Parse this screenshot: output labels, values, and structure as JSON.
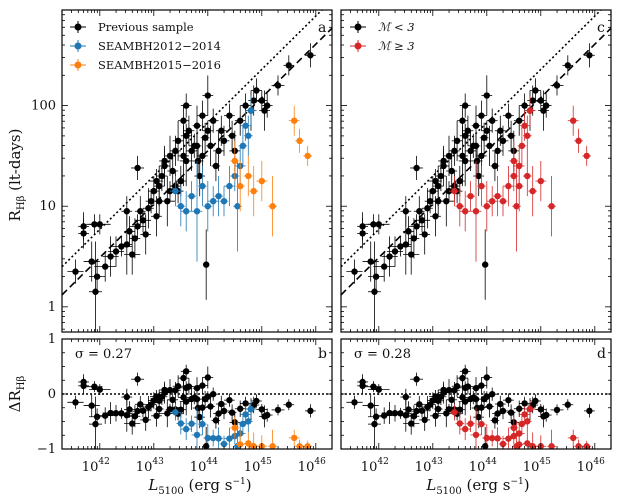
{
  "chart_data": {
    "type": "scatter",
    "xlabel": "L5100 (erg s⁻¹)",
    "ylabel_top": "RHβ (lt-days)",
    "ylabel_bottom": "ΔRHβ",
    "xscale": "log",
    "xlim_log": [
      41.3,
      46.3
    ],
    "x_ticks": [
      {
        "v": 42,
        "label": "10"
      },
      {
        "v": 43,
        "label": "10"
      },
      {
        "v": 44,
        "label": "10"
      },
      {
        "v": 45,
        "label": "10"
      },
      {
        "v": 46,
        "label": "10"
      }
    ],
    "x_tick_exponents": [
      "42",
      "43",
      "44",
      "45",
      "46"
    ],
    "top_ylim_log": [
      -0.25,
      2.95
    ],
    "top_y_ticks": [
      {
        "v": 0,
        "label": "1"
      },
      {
        "v": 1,
        "label": "10"
      },
      {
        "v": 2,
        "label": "100"
      }
    ],
    "bottom_ylim": [
      -1,
      1
    ],
    "bottom_y_ticks": [
      {
        "v": -1,
        "label": "−1"
      },
      {
        "v": 0,
        "label": "0"
      },
      {
        "v": 1,
        "label": "1"
      }
    ],
    "fit_dashed": {
      "slope": 0.53,
      "intercept_logR_at_44": 1.55
    },
    "fit_dotted": {
      "slope": 0.53,
      "intercept_logR_at_44": 1.83
    },
    "colors": {
      "previous": "#000000",
      "seamb1214": "#1f77b4",
      "seamb1516": "#ff7f0e",
      "high_mdot": "#d62728"
    },
    "panels": [
      {
        "id": "a",
        "letter": "a",
        "legend": [
          "Previous sample",
          "SEAMBH2012−2014",
          "SEAMBH2015−2016"
        ]
      },
      {
        "id": "b",
        "letter": "b",
        "sigma": "σ = 0.27"
      },
      {
        "id": "c",
        "letter": "c",
        "legend": [
          "ℳ̇ < 3",
          "ℳ̇ ≥ 3"
        ]
      },
      {
        "id": "d",
        "letter": "d",
        "sigma": "σ = 0.28"
      }
    ],
    "series": [
      {
        "name": "Previous sample",
        "group": "previous",
        "points": [
          [
            41.55,
            0.35,
            0.15,
            0.12
          ],
          [
            41.7,
            0.8,
            0.1,
            0.14
          ],
          [
            41.7,
            0.73,
            0.1,
            0.15
          ],
          [
            41.9,
            0.82,
            0.15,
            0.1
          ],
          [
            42.0,
            0.82,
            0.2,
            0.1
          ],
          [
            41.85,
            0.45,
            0.15,
            0.2
          ],
          [
            41.92,
            0.15,
            0.12,
            0.5
          ],
          [
            41.95,
            0.3,
            0.15,
            0.15
          ],
          [
            42.1,
            0.4,
            0.2,
            0.15
          ],
          [
            42.2,
            0.5,
            0.15,
            0.2
          ],
          [
            42.3,
            0.55,
            0.15,
            0.15
          ],
          [
            42.4,
            0.6,
            0.2,
            0.1
          ],
          [
            42.5,
            0.62,
            0.1,
            0.3
          ],
          [
            42.55,
            0.75,
            0.1,
            0.15
          ],
          [
            42.6,
            0.52,
            0.15,
            0.2
          ],
          [
            42.65,
            0.68,
            0.1,
            0.2
          ],
          [
            42.7,
            0.8,
            0.15,
            0.12
          ],
          [
            42.75,
            0.95,
            0.1,
            0.15
          ],
          [
            42.8,
            0.86,
            0.15,
            0.12
          ],
          [
            42.85,
            0.72,
            0.1,
            0.2
          ],
          [
            42.9,
            0.98,
            0.1,
            0.2
          ],
          [
            42.95,
            1.05,
            0.1,
            0.12
          ],
          [
            43.0,
            1.15,
            0.1,
            0.15
          ],
          [
            43.05,
            1.25,
            0.12,
            0.12
          ],
          [
            43.05,
            0.9,
            0.1,
            0.2
          ],
          [
            43.1,
            1.2,
            0.1,
            0.2
          ],
          [
            43.15,
            1.3,
            0.1,
            0.15
          ],
          [
            43.2,
            1.45,
            0.1,
            0.12
          ],
          [
            43.25,
            1.05,
            0.15,
            0.25
          ],
          [
            43.3,
            1.15,
            0.08,
            0.1
          ],
          [
            43.35,
            1.35,
            0.1,
            0.2
          ],
          [
            43.4,
            1.55,
            0.1,
            0.15
          ],
          [
            43.45,
            1.65,
            0.1,
            0.2
          ],
          [
            43.5,
            1.25,
            0.1,
            0.15
          ],
          [
            43.55,
            1.5,
            0.1,
            0.3
          ],
          [
            43.6,
            1.45,
            0.12,
            0.25
          ],
          [
            43.6,
            1.7,
            0.1,
            0.12
          ],
          [
            43.65,
            1.75,
            0.1,
            0.15
          ],
          [
            43.7,
            1.55,
            0.1,
            0.2
          ],
          [
            43.75,
            1.6,
            0.1,
            0.12
          ],
          [
            43.8,
            1.8,
            0.08,
            0.2
          ],
          [
            43.82,
            1.45,
            0.1,
            0.15
          ],
          [
            43.85,
            1.3,
            0.1,
            0.2
          ],
          [
            43.9,
            1.5,
            0.1,
            0.2
          ],
          [
            43.95,
            1.68,
            0.08,
            0.15
          ],
          [
            43.97,
            0.42,
            0.05,
            0.35
          ],
          [
            44.0,
            1.75,
            0.1,
            0.1
          ],
          [
            44.05,
            1.6,
            0.08,
            0.2
          ],
          [
            44.1,
            1.85,
            0.1,
            0.12
          ],
          [
            44.15,
            1.4,
            0.08,
            0.15
          ],
          [
            44.2,
            1.55,
            0.1,
            0.2
          ],
          [
            44.3,
            1.65,
            0.1,
            0.15
          ],
          [
            44.4,
            1.9,
            0.1,
            0.12
          ],
          [
            44.45,
            1.7,
            0.08,
            0.15
          ],
          [
            44.5,
            1.55,
            0.1,
            0.2
          ],
          [
            44.6,
            1.85,
            0.1,
            0.15
          ],
          [
            44.7,
            2.0,
            0.1,
            0.12
          ],
          [
            44.8,
            1.95,
            0.1,
            0.2
          ],
          [
            44.85,
            2.05,
            0.1,
            0.15
          ],
          [
            44.9,
            2.15,
            0.1,
            0.12
          ],
          [
            45.0,
            2.05,
            0.1,
            0.1
          ],
          [
            45.05,
            1.95,
            0.1,
            0.2
          ],
          [
            45.1,
            2.0,
            0.1,
            0.12
          ],
          [
            45.3,
            2.2,
            0.12,
            0.1
          ],
          [
            45.5,
            2.4,
            0.1,
            0.1
          ],
          [
            45.9,
            2.5,
            0.1,
            0.12
          ],
          [
            43.2,
            1.4,
            0.1,
            0.2
          ],
          [
            43.4,
            1.2,
            0.1,
            0.15
          ],
          [
            43.8,
            1.6,
            0.08,
            0.12
          ],
          [
            42.5,
            0.95,
            0.1,
            0.15
          ],
          [
            43.1,
            1.05,
            0.08,
            0.15
          ],
          [
            43.45,
            1.15,
            0.1,
            0.12
          ],
          [
            43.55,
            1.85,
            0.1,
            0.15
          ],
          [
            43.6,
            2.0,
            0.1,
            0.12
          ],
          [
            44.0,
            2.1,
            0.1,
            0.2
          ],
          [
            43.9,
            1.9,
            0.1,
            0.15
          ],
          [
            44.25,
            1.75,
            0.1,
            0.15
          ],
          [
            43.3,
            1.5,
            0.1,
            0.2
          ],
          [
            42.7,
            1.38,
            0.12,
            0.12
          ]
        ]
      },
      {
        "name": "SEAMBH2012−2014",
        "group": "seamb1214",
        "points": [
          [
            43.4,
            1.15,
            0.1,
            0.15
          ],
          [
            43.5,
            1.0,
            0.08,
            0.2
          ],
          [
            43.6,
            0.95,
            0.1,
            0.2
          ],
          [
            43.7,
            1.1,
            0.08,
            0.15
          ],
          [
            43.8,
            0.95,
            0.1,
            0.5
          ],
          [
            43.9,
            1.2,
            0.08,
            0.2
          ],
          [
            44.0,
            1.0,
            0.08,
            0.25
          ],
          [
            44.1,
            1.05,
            0.1,
            0.15
          ],
          [
            44.2,
            1.1,
            0.08,
            0.2
          ],
          [
            44.3,
            1.05,
            0.08,
            0.15
          ],
          [
            44.4,
            1.2,
            0.1,
            0.2
          ],
          [
            44.5,
            1.3,
            0.08,
            0.15
          ],
          [
            44.55,
            1.0,
            0.08,
            0.45
          ],
          [
            44.6,
            1.4,
            0.1,
            0.2
          ],
          [
            44.65,
            1.6,
            0.08,
            0.2
          ],
          [
            44.7,
            1.8,
            0.1,
            0.15
          ],
          [
            44.75,
            1.7,
            0.08,
            0.2
          ],
          [
            44.8,
            1.95,
            0.1,
            0.15
          ]
        ]
      },
      {
        "name": "SEAMBH2015−2016",
        "group": "seamb1516",
        "points": [
          [
            44.5,
            1.45,
            0.08,
            0.2
          ],
          [
            44.6,
            1.2,
            0.08,
            0.25
          ],
          [
            44.75,
            1.3,
            0.08,
            0.2
          ],
          [
            44.85,
            1.15,
            0.08,
            0.25
          ],
          [
            45.0,
            1.25,
            0.1,
            0.2
          ],
          [
            45.2,
            1.0,
            0.08,
            0.3
          ],
          [
            45.6,
            1.85,
            0.1,
            0.15
          ],
          [
            45.7,
            1.65,
            0.08,
            0.12
          ],
          [
            45.85,
            1.5,
            0.08,
            0.1
          ]
        ]
      }
    ]
  }
}
